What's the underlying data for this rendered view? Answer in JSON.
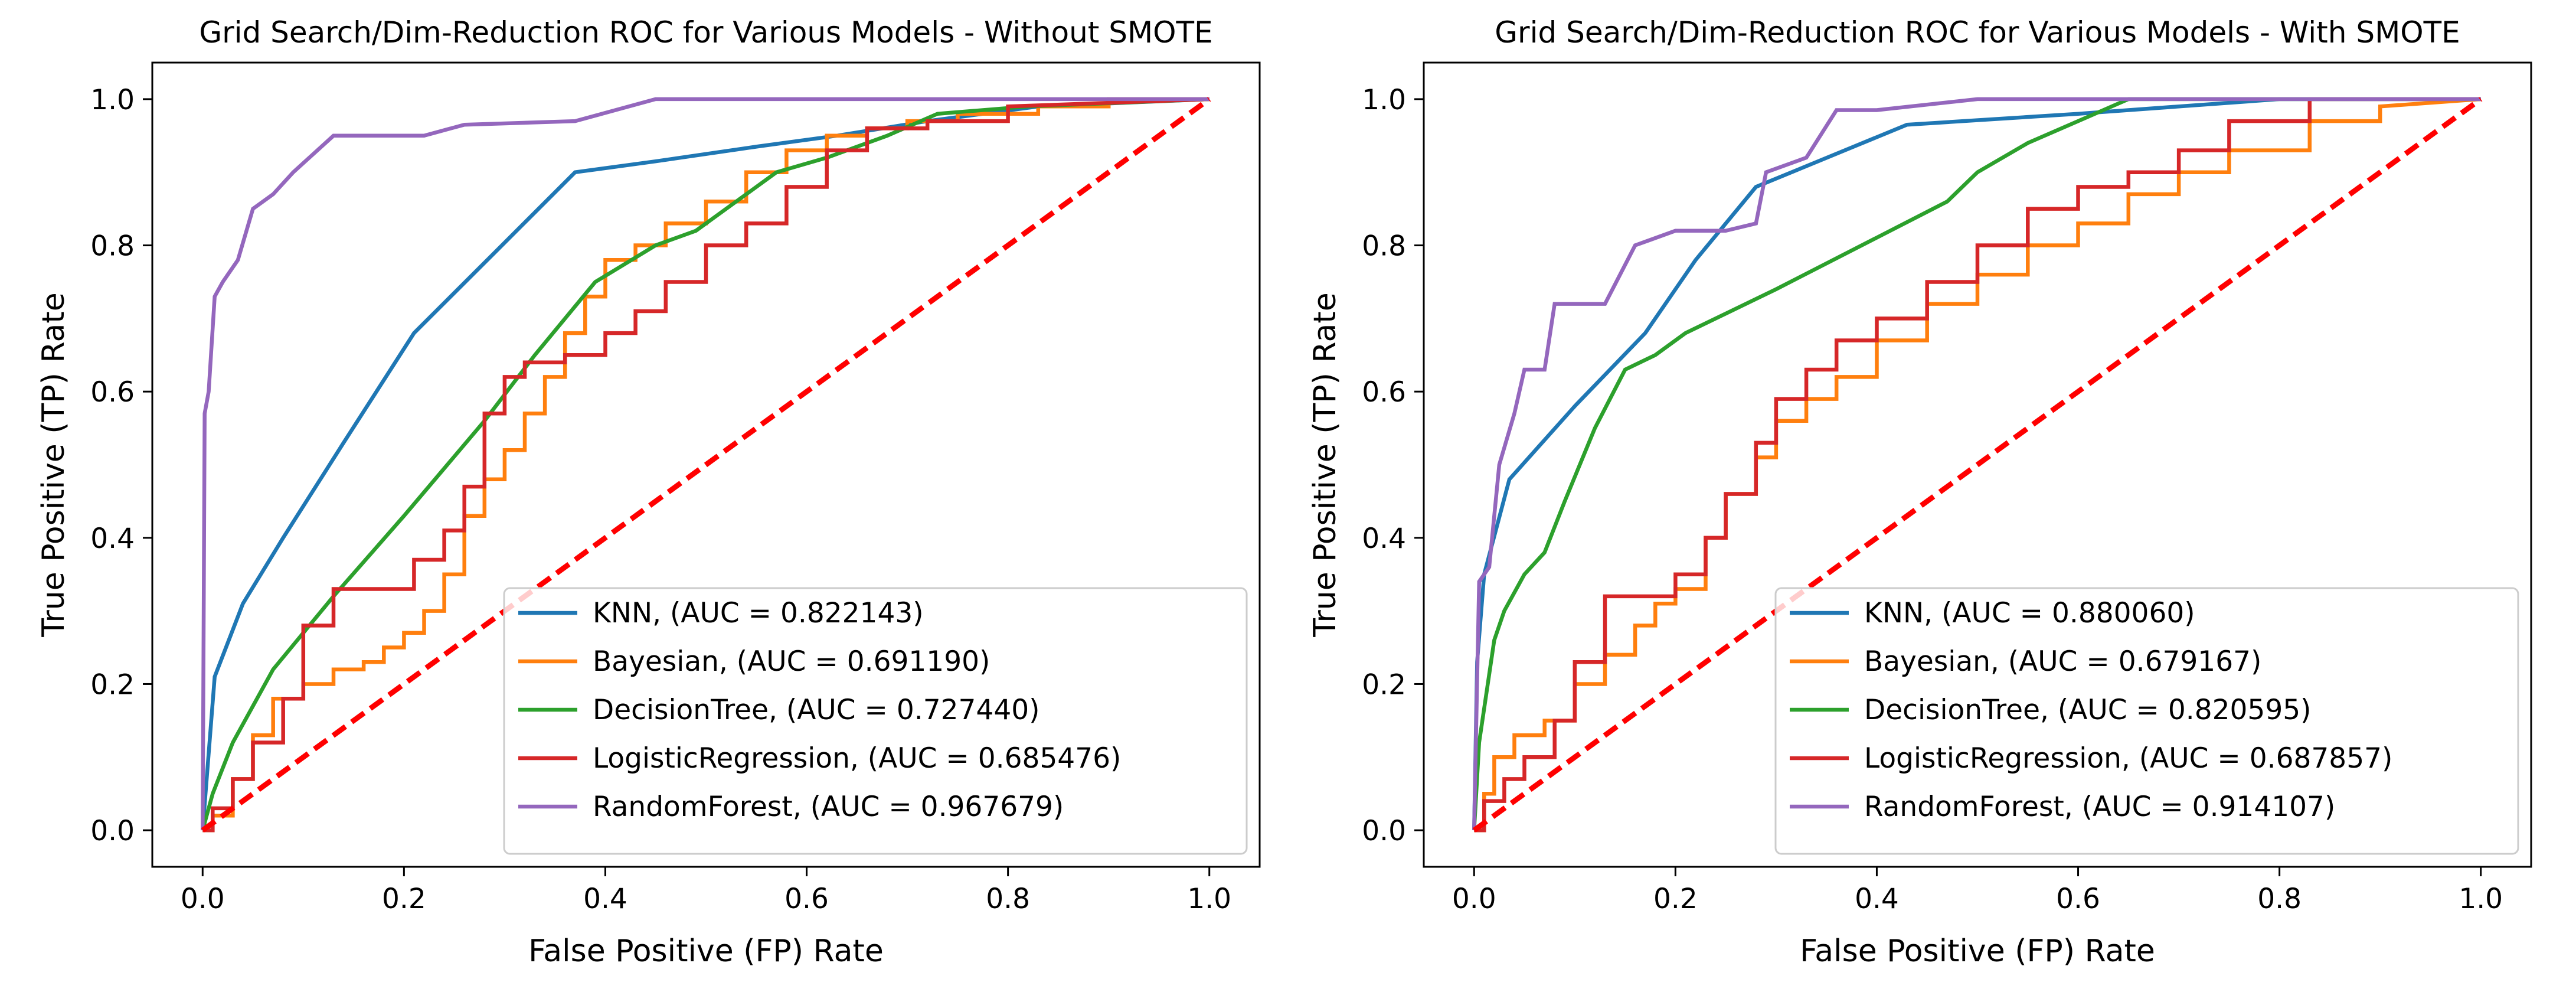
{
  "figure": {
    "background": "#ffffff"
  },
  "chart_data": [
    {
      "type": "line",
      "title": "Grid Search/Dim-Reduction ROC for Various Models - Without SMOTE",
      "xlabel": "False Positive (FP) Rate",
      "ylabel": "True Positive (TP) Rate",
      "xlim": [
        -0.05,
        1.05
      ],
      "ylim": [
        -0.05,
        1.05
      ],
      "xticks": [
        0.0,
        0.2,
        0.4,
        0.6,
        0.8,
        1.0
      ],
      "yticks": [
        0.0,
        0.2,
        0.4,
        0.6,
        0.8,
        1.0
      ],
      "xtick_labels": [
        "0.0",
        "0.2",
        "0.4",
        "0.6",
        "0.8",
        "1.0"
      ],
      "ytick_labels": [
        "0.0",
        "0.2",
        "0.4",
        "0.6",
        "0.8",
        "1.0"
      ],
      "grid": false,
      "legend_position": "lower-right",
      "series": [
        {
          "name": "KNN, (AUC = 0.822143)",
          "color": "#1f77b4",
          "style": "solid",
          "x": [
            0,
            0.012,
            0.04,
            0.08,
            0.14,
            0.21,
            0.29,
            0.37,
            0.45,
            0.55,
            0.63,
            0.72,
            0.83,
            1.0
          ],
          "y": [
            0,
            0.21,
            0.31,
            0.4,
            0.53,
            0.68,
            0.79,
            0.9,
            0.915,
            0.935,
            0.95,
            0.97,
            0.99,
            1.0
          ]
        },
        {
          "name": "Bayesian, (AUC = 0.691190)",
          "color": "#ff7f0e",
          "style": "solid",
          "x": [
            0,
            0.01,
            0.01,
            0.03,
            0.03,
            0.05,
            0.05,
            0.07,
            0.07,
            0.1,
            0.1,
            0.13,
            0.13,
            0.16,
            0.16,
            0.18,
            0.18,
            0.2,
            0.2,
            0.22,
            0.22,
            0.24,
            0.24,
            0.26,
            0.26,
            0.28,
            0.28,
            0.3,
            0.3,
            0.32,
            0.32,
            0.34,
            0.34,
            0.36,
            0.36,
            0.38,
            0.38,
            0.4,
            0.4,
            0.43,
            0.43,
            0.46,
            0.46,
            0.5,
            0.5,
            0.54,
            0.54,
            0.58,
            0.58,
            0.62,
            0.62,
            0.66,
            0.66,
            0.7,
            0.7,
            0.75,
            0.75,
            0.83,
            0.83,
            0.9,
            0.9,
            1.0
          ],
          "y": [
            0,
            0,
            0.02,
            0.02,
            0.07,
            0.07,
            0.13,
            0.13,
            0.18,
            0.18,
            0.2,
            0.2,
            0.22,
            0.22,
            0.23,
            0.23,
            0.25,
            0.25,
            0.27,
            0.27,
            0.3,
            0.3,
            0.35,
            0.35,
            0.43,
            0.43,
            0.48,
            0.48,
            0.52,
            0.52,
            0.57,
            0.57,
            0.62,
            0.62,
            0.68,
            0.68,
            0.73,
            0.73,
            0.78,
            0.78,
            0.8,
            0.8,
            0.83,
            0.83,
            0.86,
            0.86,
            0.9,
            0.9,
            0.93,
            0.93,
            0.95,
            0.95,
            0.96,
            0.96,
            0.97,
            0.97,
            0.98,
            0.98,
            0.99,
            0.99,
            1.0,
            1.0
          ]
        },
        {
          "name": "DecisionTree, (AUC = 0.727440)",
          "color": "#2ca02c",
          "style": "solid",
          "x": [
            0,
            0.01,
            0.03,
            0.07,
            0.13,
            0.2,
            0.28,
            0.33,
            0.39,
            0.45,
            0.49,
            0.53,
            0.57,
            0.62,
            0.68,
            0.73,
            0.82,
            1.0
          ],
          "y": [
            0,
            0.05,
            0.12,
            0.22,
            0.32,
            0.43,
            0.56,
            0.65,
            0.75,
            0.8,
            0.82,
            0.86,
            0.9,
            0.92,
            0.95,
            0.98,
            0.99,
            1.0
          ]
        },
        {
          "name": "LogisticRegression, (AUC = 0.685476)",
          "color": "#d62728",
          "style": "solid",
          "x": [
            0,
            0.01,
            0.01,
            0.03,
            0.03,
            0.05,
            0.05,
            0.08,
            0.08,
            0.1,
            0.1,
            0.13,
            0.13,
            0.21,
            0.21,
            0.24,
            0.24,
            0.26,
            0.26,
            0.28,
            0.28,
            0.3,
            0.3,
            0.32,
            0.32,
            0.36,
            0.36,
            0.4,
            0.4,
            0.43,
            0.43,
            0.46,
            0.46,
            0.5,
            0.5,
            0.54,
            0.54,
            0.58,
            0.58,
            0.62,
            0.62,
            0.66,
            0.66,
            0.72,
            0.72,
            0.8,
            0.8,
            1.0
          ],
          "y": [
            0,
            0,
            0.03,
            0.03,
            0.07,
            0.07,
            0.12,
            0.12,
            0.18,
            0.18,
            0.28,
            0.28,
            0.33,
            0.33,
            0.37,
            0.37,
            0.41,
            0.41,
            0.47,
            0.47,
            0.57,
            0.57,
            0.62,
            0.62,
            0.64,
            0.64,
            0.65,
            0.65,
            0.68,
            0.68,
            0.71,
            0.71,
            0.75,
            0.75,
            0.8,
            0.8,
            0.83,
            0.83,
            0.88,
            0.88,
            0.93,
            0.93,
            0.96,
            0.96,
            0.97,
            0.97,
            0.99,
            1.0
          ]
        },
        {
          "name": "RandomForest, (AUC = 0.967679)",
          "color": "#9467bd",
          "style": "solid",
          "x": [
            0,
            0.002,
            0.006,
            0.012,
            0.02,
            0.035,
            0.05,
            0.07,
            0.09,
            0.13,
            0.22,
            0.26,
            0.37,
            0.45,
            0.55,
            0.7,
            1.0
          ],
          "y": [
            0,
            0.57,
            0.6,
            0.73,
            0.75,
            0.78,
            0.85,
            0.87,
            0.9,
            0.95,
            0.95,
            0.965,
            0.97,
            1.0,
            1.0,
            1.0,
            1.0
          ]
        },
        {
          "name": "",
          "color": "#ff0000",
          "style": "dashed",
          "x": [
            0,
            1
          ],
          "y": [
            0,
            1
          ]
        }
      ]
    },
    {
      "type": "line",
      "title": "Grid Search/Dim-Reduction ROC for Various Models - With SMOTE",
      "xlabel": "False Positive (FP) Rate",
      "ylabel": "True Positive (TP) Rate",
      "xlim": [
        -0.05,
        1.05
      ],
      "ylim": [
        -0.05,
        1.05
      ],
      "xticks": [
        0.0,
        0.2,
        0.4,
        0.6,
        0.8,
        1.0
      ],
      "yticks": [
        0.0,
        0.2,
        0.4,
        0.6,
        0.8,
        1.0
      ],
      "xtick_labels": [
        "0.0",
        "0.2",
        "0.4",
        "0.6",
        "0.8",
        "1.0"
      ],
      "ytick_labels": [
        "0.0",
        "0.2",
        "0.4",
        "0.6",
        "0.8",
        "1.0"
      ],
      "grid": false,
      "legend_position": "lower-right",
      "series": [
        {
          "name": "KNN, (AUC = 0.880060)",
          "color": "#1f77b4",
          "style": "solid",
          "x": [
            0,
            0.003,
            0.01,
            0.035,
            0.1,
            0.17,
            0.22,
            0.28,
            0.43,
            0.6,
            0.8,
            1.0
          ],
          "y": [
            0,
            0.23,
            0.35,
            0.48,
            0.58,
            0.68,
            0.78,
            0.88,
            0.965,
            0.98,
            1.0,
            1.0
          ]
        },
        {
          "name": "Bayesian, (AUC = 0.679167)",
          "color": "#ff7f0e",
          "style": "solid",
          "x": [
            0,
            0.01,
            0.01,
            0.02,
            0.02,
            0.04,
            0.04,
            0.07,
            0.07,
            0.1,
            0.1,
            0.13,
            0.13,
            0.16,
            0.16,
            0.18,
            0.18,
            0.2,
            0.2,
            0.23,
            0.23,
            0.25,
            0.25,
            0.28,
            0.28,
            0.3,
            0.3,
            0.33,
            0.33,
            0.36,
            0.36,
            0.4,
            0.4,
            0.45,
            0.45,
            0.5,
            0.5,
            0.55,
            0.55,
            0.6,
            0.6,
            0.65,
            0.65,
            0.7,
            0.7,
            0.75,
            0.75,
            0.83,
            0.83,
            0.9,
            0.9,
            1.0
          ],
          "y": [
            0,
            0,
            0.05,
            0.05,
            0.1,
            0.1,
            0.13,
            0.13,
            0.15,
            0.15,
            0.2,
            0.2,
            0.24,
            0.24,
            0.28,
            0.28,
            0.31,
            0.31,
            0.33,
            0.33,
            0.4,
            0.4,
            0.46,
            0.46,
            0.51,
            0.51,
            0.56,
            0.56,
            0.59,
            0.59,
            0.62,
            0.62,
            0.67,
            0.67,
            0.72,
            0.72,
            0.76,
            0.76,
            0.8,
            0.8,
            0.83,
            0.83,
            0.87,
            0.87,
            0.9,
            0.9,
            0.93,
            0.93,
            0.97,
            0.97,
            0.99,
            1.0
          ]
        },
        {
          "name": "DecisionTree, (AUC = 0.820595)",
          "color": "#2ca02c",
          "style": "solid",
          "x": [
            0,
            0.005,
            0.02,
            0.03,
            0.05,
            0.07,
            0.09,
            0.12,
            0.15,
            0.18,
            0.21,
            0.3,
            0.47,
            0.5,
            0.55,
            0.6,
            0.65,
            0.8,
            1.0
          ],
          "y": [
            0,
            0.12,
            0.26,
            0.3,
            0.35,
            0.38,
            0.45,
            0.55,
            0.63,
            0.65,
            0.68,
            0.74,
            0.86,
            0.9,
            0.94,
            0.97,
            1.0,
            1.0,
            1.0
          ]
        },
        {
          "name": "LogisticRegression, (AUC = 0.687857)",
          "color": "#d62728",
          "style": "solid",
          "x": [
            0,
            0.01,
            0.01,
            0.03,
            0.03,
            0.05,
            0.05,
            0.08,
            0.08,
            0.1,
            0.1,
            0.13,
            0.13,
            0.2,
            0.2,
            0.23,
            0.23,
            0.25,
            0.25,
            0.28,
            0.28,
            0.3,
            0.3,
            0.33,
            0.33,
            0.36,
            0.36,
            0.4,
            0.4,
            0.45,
            0.45,
            0.5,
            0.5,
            0.55,
            0.55,
            0.6,
            0.6,
            0.65,
            0.65,
            0.7,
            0.7,
            0.75,
            0.75,
            0.83,
            0.83,
            1.0
          ],
          "y": [
            0,
            0,
            0.04,
            0.04,
            0.07,
            0.07,
            0.1,
            0.1,
            0.15,
            0.15,
            0.23,
            0.23,
            0.32,
            0.32,
            0.35,
            0.35,
            0.4,
            0.4,
            0.46,
            0.46,
            0.53,
            0.53,
            0.59,
            0.59,
            0.63,
            0.63,
            0.67,
            0.67,
            0.7,
            0.7,
            0.75,
            0.75,
            0.8,
            0.8,
            0.85,
            0.85,
            0.88,
            0.88,
            0.9,
            0.9,
            0.93,
            0.93,
            0.97,
            0.97,
            1.0,
            1.0
          ]
        },
        {
          "name": "RandomForest, (AUC = 0.914107)",
          "color": "#9467bd",
          "style": "solid",
          "x": [
            0,
            0.005,
            0.015,
            0.025,
            0.04,
            0.05,
            0.07,
            0.08,
            0.1,
            0.13,
            0.16,
            0.2,
            0.25,
            0.28,
            0.29,
            0.33,
            0.36,
            0.4,
            0.5,
            0.6,
            0.7,
            1.0
          ],
          "y": [
            0,
            0.34,
            0.36,
            0.5,
            0.57,
            0.63,
            0.63,
            0.72,
            0.72,
            0.72,
            0.8,
            0.82,
            0.82,
            0.83,
            0.9,
            0.92,
            0.985,
            0.985,
            1.0,
            1.0,
            1.0,
            1.0
          ]
        },
        {
          "name": "",
          "color": "#ff0000",
          "style": "dashed",
          "x": [
            0,
            1
          ],
          "y": [
            0,
            1
          ]
        }
      ]
    }
  ]
}
